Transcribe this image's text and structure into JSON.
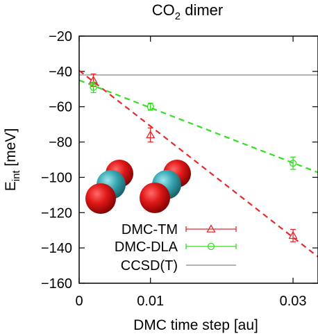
{
  "chart_data": {
    "type": "scatter",
    "title": "CO2 dimer",
    "title_main": "CO",
    "title_sub": "2",
    "title_rest": " dimer",
    "xlabel": "DMC time step [au]",
    "ylabel": "E",
    "ylabel_sub": "int",
    "ylabel_unit": " [meV]",
    "xlim": [
      0,
      0.0335
    ],
    "ylim": [
      -160,
      -20
    ],
    "xticks": [
      {
        "value": 0,
        "label": "0"
      },
      {
        "value": 0.01,
        "label": "0.01"
      },
      {
        "value": 0.03,
        "label": "0.03"
      }
    ],
    "yticks": [
      {
        "value": -20,
        "label": "−20"
      },
      {
        "value": -40,
        "label": "−40"
      },
      {
        "value": -60,
        "label": "−60"
      },
      {
        "value": -80,
        "label": "−80"
      },
      {
        "value": -100,
        "label": "−100"
      },
      {
        "value": -120,
        "label": "−120"
      },
      {
        "value": -140,
        "label": "−140"
      },
      {
        "value": -160,
        "label": "−160"
      }
    ],
    "grid": false,
    "legend_position": "bottom-right",
    "series": [
      {
        "name": "DMC-TM",
        "marker": "triangle",
        "color": "#e8282a",
        "points": [
          {
            "x": 0.002,
            "y": -45,
            "err": 3.5
          },
          {
            "x": 0.01,
            "y": -76,
            "err": 4
          },
          {
            "x": 0.03,
            "y": -133,
            "err": 3.5
          }
        ],
        "fit": {
          "intercept": -39.5,
          "slope": -3150
        }
      },
      {
        "name": "DMC-DLA",
        "marker": "circle",
        "color": "#33dd22",
        "points": [
          {
            "x": 0.002,
            "y": -49,
            "err": 3
          },
          {
            "x": 0.01,
            "y": -60,
            "err": 2
          },
          {
            "x": 0.03,
            "y": -92,
            "err": 3.5
          }
        ],
        "fit": {
          "intercept": -45,
          "slope": -1560
        }
      },
      {
        "name": "CCSD(T)",
        "marker": "line",
        "color": "#b4b4b4",
        "value": -42
      }
    ],
    "inset": {
      "description": "CO2 dimer molecules",
      "atom_colors": {
        "oxygen": "#d81414",
        "carbon": "#3aa8b4"
      }
    }
  }
}
